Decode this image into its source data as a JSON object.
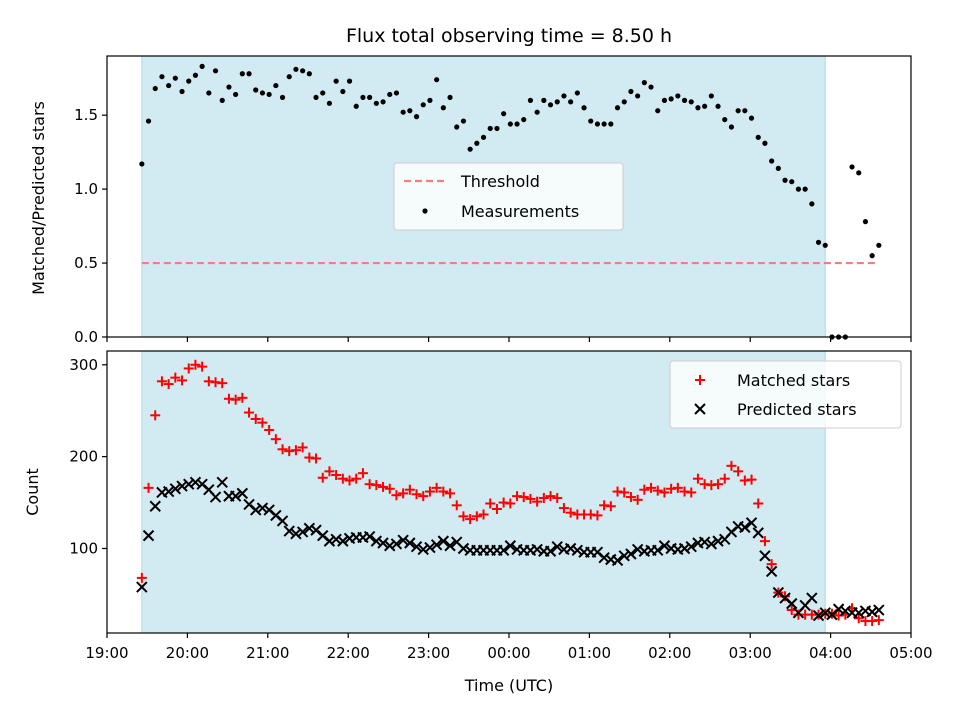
{
  "chart_data": [
    {
      "type": "scatter",
      "title": "Flux total observing time = 8.50 h",
      "ylabel": "Matched/Predicted stars",
      "xlabel": "",
      "ylim": [
        0,
        1.9
      ],
      "yticks": [
        "0.0",
        "0.5",
        "1.0",
        "1.5"
      ],
      "x_range_hours": [
        "19:00",
        "05:00"
      ],
      "observing_window": [
        "19:26",
        "03:56"
      ],
      "observing_window_color": "#add8e6",
      "threshold": {
        "name": "Threshold",
        "value": 0.5,
        "x_start": "19:26",
        "x_end": "04:36",
        "color": "#f08080",
        "style": "dashed"
      },
      "legend": {
        "placement": "center",
        "entries": [
          "Threshold",
          "Measurements"
        ]
      },
      "series": [
        {
          "name": "Measurements",
          "color": "#000000",
          "marker": "dot",
          "x": [
            "19:26",
            "19:31",
            "19:36",
            "19:41",
            "19:46",
            "19:51",
            "19:56",
            "20:01",
            "20:06",
            "20:11",
            "20:16",
            "20:21",
            "20:26",
            "20:31",
            "20:36",
            "20:41",
            "20:46",
            "20:51",
            "20:56",
            "21:01",
            "21:06",
            "21:11",
            "21:16",
            "21:21",
            "21:26",
            "21:31",
            "21:36",
            "21:41",
            "21:46",
            "21:51",
            "21:56",
            "22:01",
            "22:06",
            "22:11",
            "22:16",
            "22:21",
            "22:26",
            "22:31",
            "22:36",
            "22:41",
            "22:46",
            "22:51",
            "22:56",
            "23:01",
            "23:06",
            "23:11",
            "23:16",
            "23:21",
            "23:26",
            "23:31",
            "23:36",
            "23:41",
            "23:46",
            "23:51",
            "23:56",
            "00:01",
            "00:06",
            "00:11",
            "00:16",
            "00:21",
            "00:26",
            "00:31",
            "00:36",
            "00:41",
            "00:46",
            "00:51",
            "00:56",
            "01:01",
            "01:06",
            "01:11",
            "01:16",
            "01:21",
            "01:26",
            "01:31",
            "01:36",
            "01:41",
            "01:46",
            "01:51",
            "01:56",
            "02:01",
            "02:06",
            "02:11",
            "02:16",
            "02:21",
            "02:26",
            "02:31",
            "02:36",
            "02:41",
            "02:46",
            "02:51",
            "02:56",
            "03:01",
            "03:06",
            "03:11",
            "03:16",
            "03:21",
            "03:26",
            "03:31",
            "03:36",
            "03:41",
            "03:46",
            "03:51",
            "03:56",
            "04:01",
            "04:06",
            "04:11",
            "04:16",
            "04:21",
            "04:26",
            "04:31",
            "04:36"
          ],
          "y": [
            1.17,
            1.46,
            1.68,
            1.76,
            1.7,
            1.75,
            1.66,
            1.73,
            1.77,
            1.83,
            1.65,
            1.8,
            1.6,
            1.69,
            1.64,
            1.78,
            1.78,
            1.67,
            1.65,
            1.64,
            1.7,
            1.62,
            1.76,
            1.81,
            1.8,
            1.78,
            1.62,
            1.65,
            1.58,
            1.73,
            1.66,
            1.73,
            1.56,
            1.62,
            1.62,
            1.58,
            1.59,
            1.64,
            1.65,
            1.52,
            1.53,
            1.49,
            1.57,
            1.6,
            1.74,
            1.55,
            1.62,
            1.42,
            1.46,
            1.27,
            1.31,
            1.35,
            1.41,
            1.41,
            1.51,
            1.44,
            1.44,
            1.47,
            1.6,
            1.52,
            1.6,
            1.57,
            1.59,
            1.63,
            1.59,
            1.65,
            1.55,
            1.46,
            1.44,
            1.44,
            1.44,
            1.55,
            1.59,
            1.66,
            1.63,
            1.72,
            1.69,
            1.53,
            1.6,
            1.61,
            1.63,
            1.6,
            1.59,
            1.55,
            1.56,
            1.63,
            1.56,
            1.47,
            1.42,
            1.53,
            1.53,
            1.48,
            1.35,
            1.31,
            1.19,
            1.14,
            1.06,
            1.05,
            1.0,
            1.0,
            0.9,
            0.64,
            0.62,
            0.0,
            0.0,
            0.0,
            1.15,
            1.11,
            0.78,
            0.55,
            0.62
          ]
        }
      ]
    },
    {
      "type": "scatter",
      "title": "",
      "ylabel": "Count",
      "xlabel": "Time (UTC)",
      "ylim": [
        8,
        315
      ],
      "yticks": [
        "100",
        "200",
        "300"
      ],
      "xticks": [
        "19:00",
        "20:00",
        "21:00",
        "22:00",
        "23:00",
        "00:00",
        "01:00",
        "02:00",
        "03:00",
        "04:00",
        "05:00"
      ],
      "observing_window": [
        "19:26",
        "03:56"
      ],
      "observing_window_color": "#add8e6",
      "legend": {
        "placement": "top-right",
        "entries": [
          "Matched stars",
          "Predicted stars"
        ]
      },
      "series": [
        {
          "name": "Matched stars",
          "color": "#ff0000",
          "marker": "plus",
          "x": [
            "19:26",
            "19:31",
            "19:36",
            "19:41",
            "19:46",
            "19:51",
            "19:56",
            "20:01",
            "20:06",
            "20:11",
            "20:16",
            "20:21",
            "20:26",
            "20:31",
            "20:36",
            "20:41",
            "20:46",
            "20:51",
            "20:56",
            "21:01",
            "21:06",
            "21:11",
            "21:16",
            "21:21",
            "21:26",
            "21:31",
            "21:36",
            "21:41",
            "21:46",
            "21:51",
            "21:56",
            "22:01",
            "22:06",
            "22:11",
            "22:16",
            "22:21",
            "22:26",
            "22:31",
            "22:36",
            "22:41",
            "22:46",
            "22:51",
            "22:56",
            "23:01",
            "23:06",
            "23:11",
            "23:16",
            "23:21",
            "23:26",
            "23:31",
            "23:36",
            "23:41",
            "23:46",
            "23:51",
            "23:56",
            "00:01",
            "00:06",
            "00:11",
            "00:16",
            "00:21",
            "00:26",
            "00:31",
            "00:36",
            "00:41",
            "00:46",
            "00:51",
            "00:56",
            "01:01",
            "01:06",
            "01:11",
            "01:16",
            "01:21",
            "01:26",
            "01:31",
            "01:36",
            "01:41",
            "01:46",
            "01:51",
            "01:56",
            "02:01",
            "02:06",
            "02:11",
            "02:16",
            "02:21",
            "02:26",
            "02:31",
            "02:36",
            "02:41",
            "02:46",
            "02:51",
            "02:56",
            "03:01",
            "03:06",
            "03:11",
            "03:16",
            "03:21",
            "03:26",
            "03:31",
            "03:36",
            "03:41",
            "03:46",
            "03:51",
            "03:56",
            "04:01",
            "04:06",
            "04:11",
            "04:16",
            "04:21",
            "04:26",
            "04:31",
            "04:36"
          ],
          "y": [
            68,
            166,
            245,
            282,
            279,
            286,
            283,
            296,
            300,
            298,
            282,
            281,
            280,
            263,
            262,
            264,
            248,
            241,
            237,
            229,
            219,
            208,
            206,
            207,
            210,
            199,
            198,
            177,
            184,
            180,
            176,
            174,
            176,
            182,
            170,
            169,
            167,
            165,
            158,
            160,
            164,
            159,
            157,
            162,
            166,
            162,
            160,
            147,
            135,
            132,
            135,
            137,
            149,
            143,
            150,
            149,
            157,
            156,
            154,
            151,
            155,
            157,
            155,
            144,
            139,
            137,
            137,
            137,
            136,
            147,
            146,
            162,
            161,
            156,
            153,
            164,
            166,
            163,
            161,
            165,
            166,
            162,
            161,
            176,
            170,
            169,
            170,
            176,
            190,
            184,
            174,
            175,
            149,
            108,
            83,
            52,
            48,
            33,
            28,
            28,
            28,
            28,
            29,
            29,
            27,
            28,
            35,
            24,
            21,
            21,
            22
          ]
        },
        {
          "name": "Predicted stars",
          "color": "#000000",
          "marker": "x",
          "x": [
            "19:26",
            "19:31",
            "19:36",
            "19:41",
            "19:46",
            "19:51",
            "19:56",
            "20:01",
            "20:06",
            "20:11",
            "20:16",
            "20:21",
            "20:26",
            "20:31",
            "20:36",
            "20:41",
            "20:46",
            "20:51",
            "20:56",
            "21:01",
            "21:06",
            "21:11",
            "21:16",
            "21:21",
            "21:26",
            "21:31",
            "21:36",
            "21:41",
            "21:46",
            "21:51",
            "21:56",
            "22:01",
            "22:06",
            "22:11",
            "22:16",
            "22:21",
            "22:26",
            "22:31",
            "22:36",
            "22:41",
            "22:46",
            "22:51",
            "22:56",
            "23:01",
            "23:06",
            "23:11",
            "23:16",
            "23:21",
            "23:26",
            "23:31",
            "23:36",
            "23:41",
            "23:46",
            "23:51",
            "23:56",
            "00:01",
            "00:06",
            "00:11",
            "00:16",
            "00:21",
            "00:26",
            "00:31",
            "00:36",
            "00:41",
            "00:46",
            "00:51",
            "00:56",
            "01:01",
            "01:06",
            "01:11",
            "01:16",
            "01:21",
            "01:26",
            "01:31",
            "01:36",
            "01:41",
            "01:46",
            "01:51",
            "01:56",
            "02:01",
            "02:06",
            "02:11",
            "02:16",
            "02:21",
            "02:26",
            "02:31",
            "02:36",
            "02:41",
            "02:46",
            "02:51",
            "02:56",
            "03:01",
            "03:06",
            "03:11",
            "03:16",
            "03:21",
            "03:26",
            "03:31",
            "03:36",
            "03:41",
            "03:46",
            "03:51",
            "03:56",
            "04:01",
            "04:06",
            "04:11",
            "04:16",
            "04:21",
            "04:26",
            "04:31",
            "04:36"
          ],
          "y": [
            58,
            114,
            146,
            161,
            162,
            165,
            168,
            170,
            172,
            170,
            164,
            156,
            172,
            157,
            157,
            160,
            148,
            142,
            144,
            142,
            136,
            130,
            119,
            116,
            118,
            122,
            120,
            114,
            108,
            110,
            108,
            111,
            112,
            112,
            113,
            108,
            106,
            103,
            105,
            109,
            106,
            102,
            99,
            101,
            104,
            108,
            103,
            107,
            100,
            98,
            98,
            98,
            98,
            98,
            98,
            103,
            99,
            98,
            98,
            99,
            97,
            97,
            102,
            99,
            100,
            98,
            96,
            96,
            96,
            90,
            88,
            87,
            92,
            94,
            99,
            97,
            98,
            98,
            103,
            100,
            99,
            100,
            102,
            106,
            107,
            105,
            108,
            110,
            118,
            124,
            123,
            128,
            117,
            92,
            75,
            52,
            46,
            40,
            30,
            38,
            46,
            27,
            30,
            28,
            34,
            32,
            30,
            30,
            32,
            31,
            33
          ]
        }
      ]
    }
  ]
}
